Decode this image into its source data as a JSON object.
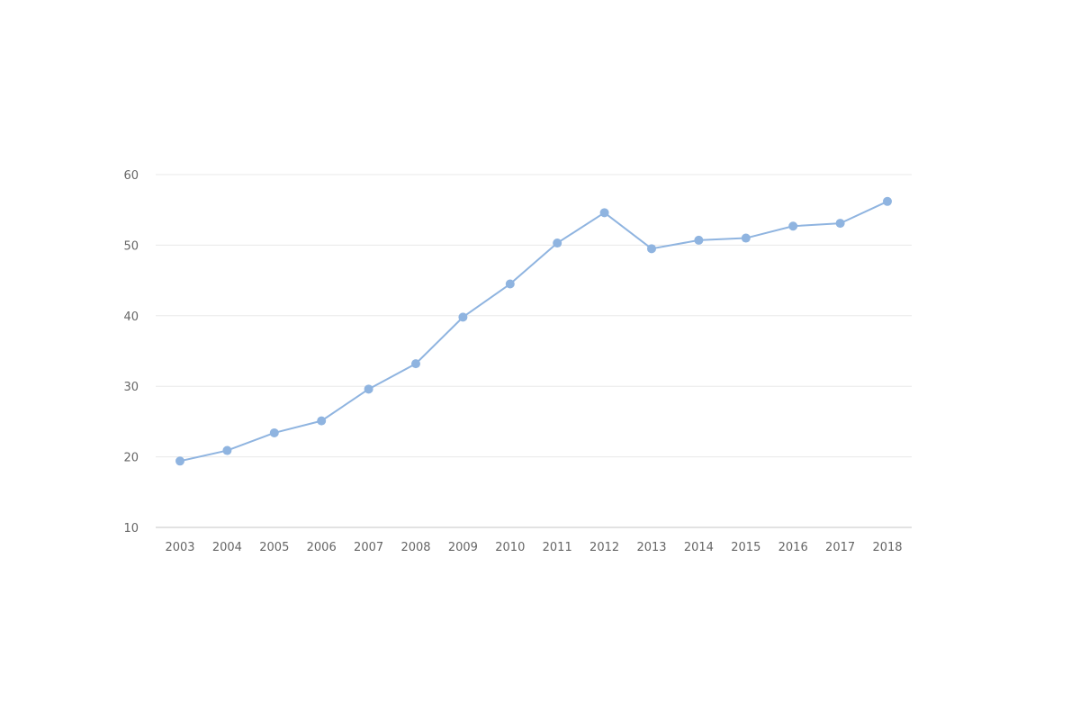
{
  "colors": {
    "series": "#8fb4e0",
    "grid": "#e8e8e8",
    "axis": "#d9d9d9",
    "tick_text": "#666666"
  },
  "chart_data": {
    "type": "line",
    "title": "",
    "xlabel": "",
    "ylabel": "",
    "categories": [
      "2003",
      "2004",
      "2005",
      "2006",
      "2007",
      "2008",
      "2009",
      "2010",
      "2011",
      "2012",
      "2013",
      "2014",
      "2015",
      "2016",
      "2017",
      "2018"
    ],
    "series": [
      {
        "values": [
          19.4,
          20.9,
          23.4,
          25.1,
          29.6,
          33.2,
          39.8,
          44.5,
          50.3,
          54.6,
          49.5,
          50.7,
          51.0,
          52.7,
          53.1,
          56.2
        ]
      }
    ],
    "ylim": [
      10,
      60
    ],
    "yticks": [
      "10",
      "20",
      "30",
      "40",
      "50",
      "60"
    ],
    "grid": true,
    "legend": "none"
  }
}
